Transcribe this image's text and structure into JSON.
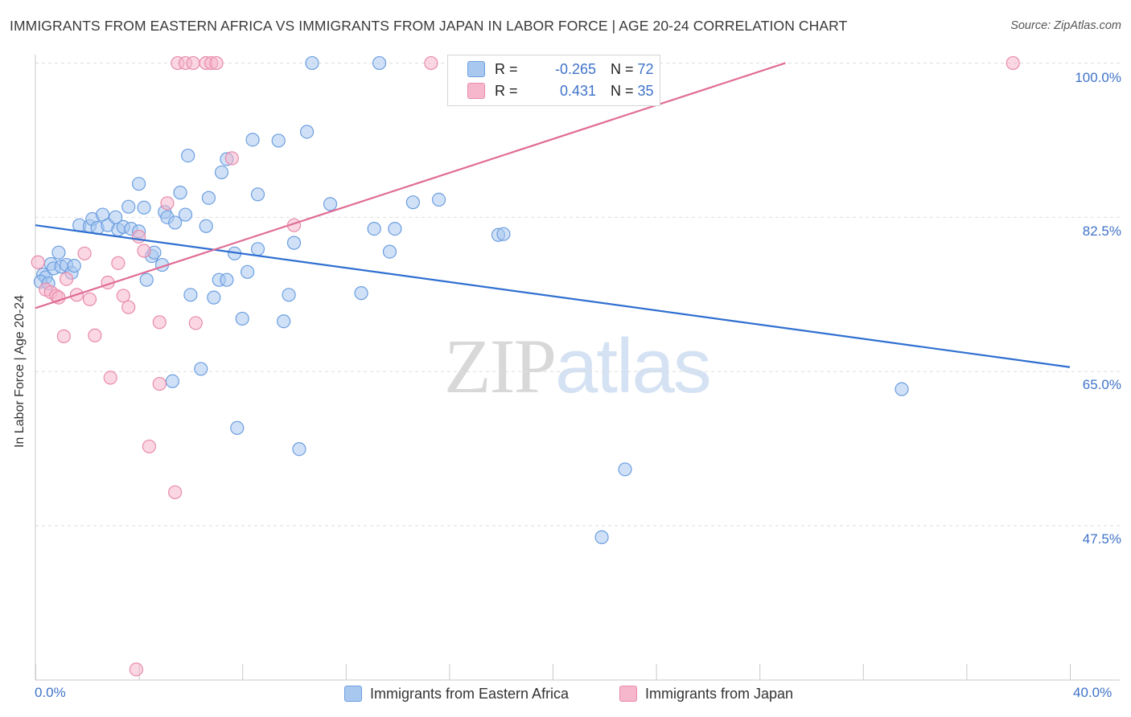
{
  "title": "IMMIGRANTS FROM EASTERN AFRICA VS IMMIGRANTS FROM JAPAN IN LABOR FORCE | AGE 20-24 CORRELATION CHART",
  "source": "Source: ZipAtlas.com",
  "watermark": {
    "zip": "ZIP",
    "atlas": "atlas"
  },
  "stats": [
    {
      "r_label": "R =",
      "r_value": "-0.265",
      "n_label": "N =",
      "n_value": "72",
      "color": "#a9c8f0"
    },
    {
      "r_label": "R =",
      "r_value": "0.431",
      "n_label": "N =",
      "n_value": "35",
      "color": "#f6b6cc"
    }
  ],
  "legend": [
    {
      "label": "Immigrants from Eastern Africa",
      "color": "#a9c8f0"
    },
    {
      "label": "Immigrants from Japan",
      "color": "#f6b6cc"
    }
  ],
  "chart_data": {
    "type": "scatter",
    "title": "IMMIGRANTS FROM EASTERN AFRICA VS IMMIGRANTS FROM JAPAN IN LABOR FORCE | AGE 20-24 CORRELATION CHART",
    "xlabel": "",
    "ylabel": "In Labor Force | Age 20-24",
    "xlim": [
      0,
      40
    ],
    "ylim": [
      30,
      101.5
    ],
    "x_tick_labels": [
      "0.0%",
      "40.0%"
    ],
    "y_ticks": [
      47.5,
      65.0,
      82.5,
      100.0
    ],
    "y_tick_labels": [
      "47.5%",
      "65.0%",
      "82.5%",
      "100.0%"
    ],
    "grid": true,
    "series": [
      {
        "name": "Immigrants from Eastern Africa",
        "color": "#a9c8f0",
        "stroke": "#6b9ee0",
        "trend": {
          "x": [
            0,
            40
          ],
          "y": [
            81.6,
            65.5
          ],
          "color": "#2f6fd0"
        },
        "points": [
          [
            0.3,
            76.0
          ],
          [
            0.4,
            75.7
          ],
          [
            0.6,
            77.2
          ],
          [
            0.7,
            76.7
          ],
          [
            0.9,
            78.5
          ],
          [
            1.0,
            76.9
          ],
          [
            1.2,
            77.1
          ],
          [
            1.4,
            76.2
          ],
          [
            1.5,
            77.0
          ],
          [
            1.7,
            81.6
          ],
          [
            2.1,
            81.5
          ],
          [
            2.2,
            82.3
          ],
          [
            2.4,
            81.3
          ],
          [
            2.6,
            82.8
          ],
          [
            2.8,
            81.6
          ],
          [
            3.1,
            82.5
          ],
          [
            3.2,
            81.1
          ],
          [
            3.4,
            81.4
          ],
          [
            3.7,
            81.2
          ],
          [
            4.0,
            80.9
          ],
          [
            3.6,
            83.7
          ],
          [
            4.0,
            86.3
          ],
          [
            4.2,
            83.6
          ],
          [
            4.3,
            75.4
          ],
          [
            4.5,
            78.1
          ],
          [
            4.6,
            78.5
          ],
          [
            4.9,
            77.1
          ],
          [
            5.0,
            83.1
          ],
          [
            5.1,
            82.5
          ],
          [
            5.3,
            63.9
          ],
          [
            5.4,
            81.9
          ],
          [
            5.6,
            85.3
          ],
          [
            5.8,
            82.8
          ],
          [
            5.9,
            89.5
          ],
          [
            6.0,
            73.7
          ],
          [
            6.4,
            65.3
          ],
          [
            6.6,
            81.5
          ],
          [
            6.7,
            84.7
          ],
          [
            6.9,
            73.4
          ],
          [
            7.1,
            75.4
          ],
          [
            7.2,
            87.6
          ],
          [
            7.4,
            89.1
          ],
          [
            7.4,
            75.4
          ],
          [
            7.7,
            78.4
          ],
          [
            7.8,
            58.6
          ],
          [
            8.0,
            71.0
          ],
          [
            8.2,
            76.3
          ],
          [
            8.4,
            91.3
          ],
          [
            8.6,
            85.1
          ],
          [
            8.6,
            78.9
          ],
          [
            9.4,
            91.2
          ],
          [
            9.6,
            70.7
          ],
          [
            9.8,
            73.7
          ],
          [
            10.0,
            79.6
          ],
          [
            10.2,
            56.2
          ],
          [
            10.5,
            92.2
          ],
          [
            11.4,
            84.0
          ],
          [
            12.6,
            73.9
          ],
          [
            13.1,
            81.2
          ],
          [
            13.7,
            78.6
          ],
          [
            13.9,
            81.2
          ],
          [
            14.6,
            84.2
          ],
          [
            15.6,
            84.5
          ],
          [
            17.9,
            80.5
          ],
          [
            18.1,
            80.6
          ],
          [
            21.9,
            46.2
          ],
          [
            22.8,
            53.9
          ],
          [
            33.5,
            63.0
          ],
          [
            10.7,
            100.0
          ],
          [
            13.3,
            100.0
          ],
          [
            0.2,
            75.2
          ],
          [
            0.5,
            75.0
          ]
        ]
      },
      {
        "name": "Immigrants from Japan",
        "color": "#f6b6cc",
        "stroke": "#e88aab",
        "trend": {
          "x": [
            0,
            29.0
          ],
          "y": [
            72.2,
            100.0
          ],
          "color": "#e06c96"
        },
        "points": [
          [
            0.1,
            77.4
          ],
          [
            0.4,
            74.3
          ],
          [
            0.6,
            74.0
          ],
          [
            0.8,
            73.6
          ],
          [
            0.9,
            73.4
          ],
          [
            1.1,
            69.0
          ],
          [
            1.2,
            75.5
          ],
          [
            1.6,
            73.7
          ],
          [
            1.9,
            78.4
          ],
          [
            2.1,
            73.2
          ],
          [
            2.3,
            69.1
          ],
          [
            2.8,
            75.1
          ],
          [
            2.9,
            64.3
          ],
          [
            3.2,
            77.3
          ],
          [
            3.4,
            73.6
          ],
          [
            3.6,
            72.3
          ],
          [
            3.9,
            31.2
          ],
          [
            4.0,
            80.3
          ],
          [
            4.2,
            78.7
          ],
          [
            4.4,
            56.5
          ],
          [
            4.8,
            70.6
          ],
          [
            4.8,
            63.6
          ],
          [
            5.1,
            84.1
          ],
          [
            5.4,
            51.3
          ],
          [
            5.5,
            100.0
          ],
          [
            5.8,
            100.0
          ],
          [
            6.1,
            100.0
          ],
          [
            6.2,
            70.5
          ],
          [
            6.6,
            100.0
          ],
          [
            6.8,
            100.0
          ],
          [
            7.0,
            100.0
          ],
          [
            7.6,
            89.2
          ],
          [
            10.0,
            81.6
          ],
          [
            15.3,
            100.0
          ],
          [
            37.8,
            100.0
          ]
        ]
      }
    ]
  }
}
